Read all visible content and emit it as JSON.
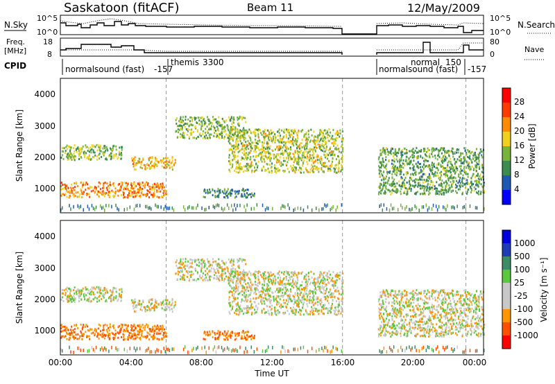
{
  "header": {
    "station": "Saskatoon (fitACF)",
    "beam": "Beam 11",
    "date": "12/May/2009"
  },
  "noise_panel": {
    "left_label": "N.Sky",
    "right_label": "N.Search",
    "left_ticks": [
      "10^5",
      "10^0"
    ],
    "right_ticks": [
      "10^5",
      "10^0"
    ]
  },
  "freq_panel": {
    "left_label_line1": "Freq.",
    "left_label_line2": "[MHz]",
    "right_label": "Nave",
    "left_ticks": [
      "18",
      "8"
    ],
    "right_ticks": [
      "80",
      "0"
    ]
  },
  "cpid": {
    "label": "CPID",
    "segments": [
      {
        "name": "normalsound (fast)",
        "code": "-157",
        "start_h": 0.0,
        "end_h": 6.0
      },
      {
        "name": "themis",
        "code": "3300",
        "start_h": 6.0,
        "end_h": 16.0
      },
      {
        "name": "normalsound (fast)",
        "code": "-157",
        "start_h": 18.0,
        "end_h": 23.0
      },
      {
        "name": "normal",
        "code": "150",
        "start_h": 18.0,
        "end_h": 23.0
      },
      {
        "name": "",
        "code": "-157",
        "start_h": 23.0,
        "end_h": 24.0
      }
    ]
  },
  "power_panel": {
    "ylabel": "Slant Range [km]",
    "colorbar_label": "Power [dB]",
    "colorbar_ticks": [
      "28",
      "24",
      "20",
      "16",
      "12",
      "8",
      "4"
    ],
    "yticks": [
      "4000",
      "3000",
      "2000",
      "1000"
    ]
  },
  "velocity_panel": {
    "ylabel": "Slant Range [km]",
    "colorbar_label": "Velocity [m s⁻¹]",
    "colorbar_ticks": [
      "1000",
      "500",
      "100",
      "25",
      "-25",
      "-100",
      "-500",
      "-1000"
    ],
    "yticks": [
      "4000",
      "3000",
      "2000",
      "1000"
    ]
  },
  "xaxis": {
    "label": "Time UT",
    "ticks": [
      "00:00",
      "04:00",
      "08:00",
      "12:00",
      "16:00",
      "20:00",
      "00:00"
    ]
  },
  "colors": {
    "power_scale": [
      "#0000ff",
      "#1e5ab4",
      "#3c8c50",
      "#78b43c",
      "#f0d21e",
      "#ff8c00",
      "#ff3c00",
      "#ff0000"
    ],
    "velocity_scale": [
      "#ff0000",
      "#ff5000",
      "#ff9600",
      "#c8c8c8",
      "#c8c8c8",
      "#5ac83c",
      "#3c8c64",
      "#1e3cb4",
      "#0000dc"
    ]
  },
  "chart_data": {
    "type": "heatmap",
    "x_unit": "hours UT",
    "xlim": [
      0,
      24
    ],
    "ylim_km": [
      180,
      4500
    ],
    "data_gap_hours": [
      16.0,
      18.0
    ],
    "power_scale_db": [
      0,
      32
    ],
    "velocity_scale_ms": [
      -1250,
      1250
    ],
    "scatter_regions": [
      {
        "t0": 0.0,
        "t1": 6.0,
        "r0": 700,
        "r1": 1200,
        "power_db": 22,
        "velocity_ms": -100
      },
      {
        "t0": 0.0,
        "t1": 3.5,
        "r0": 1900,
        "r1": 2400,
        "power_db": 14,
        "velocity_ms": 0
      },
      {
        "t0": 4.0,
        "t1": 6.5,
        "r0": 1600,
        "r1": 2000,
        "power_db": 20,
        "velocity_ms": 0
      },
      {
        "t0": 6.5,
        "t1": 10.5,
        "r0": 2600,
        "r1": 3300,
        "power_db": 14,
        "velocity_ms": 0
      },
      {
        "t0": 9.5,
        "t1": 16.0,
        "r0": 1500,
        "r1": 2900,
        "power_db": 16,
        "velocity_ms": 0
      },
      {
        "t0": 8.0,
        "t1": 11.0,
        "r0": 700,
        "r1": 1000,
        "power_db": 10,
        "velocity_ms": -100
      },
      {
        "t0": 18.0,
        "t1": 24.0,
        "r0": 800,
        "r1": 2300,
        "power_db": 12,
        "velocity_ms": 0
      }
    ]
  }
}
